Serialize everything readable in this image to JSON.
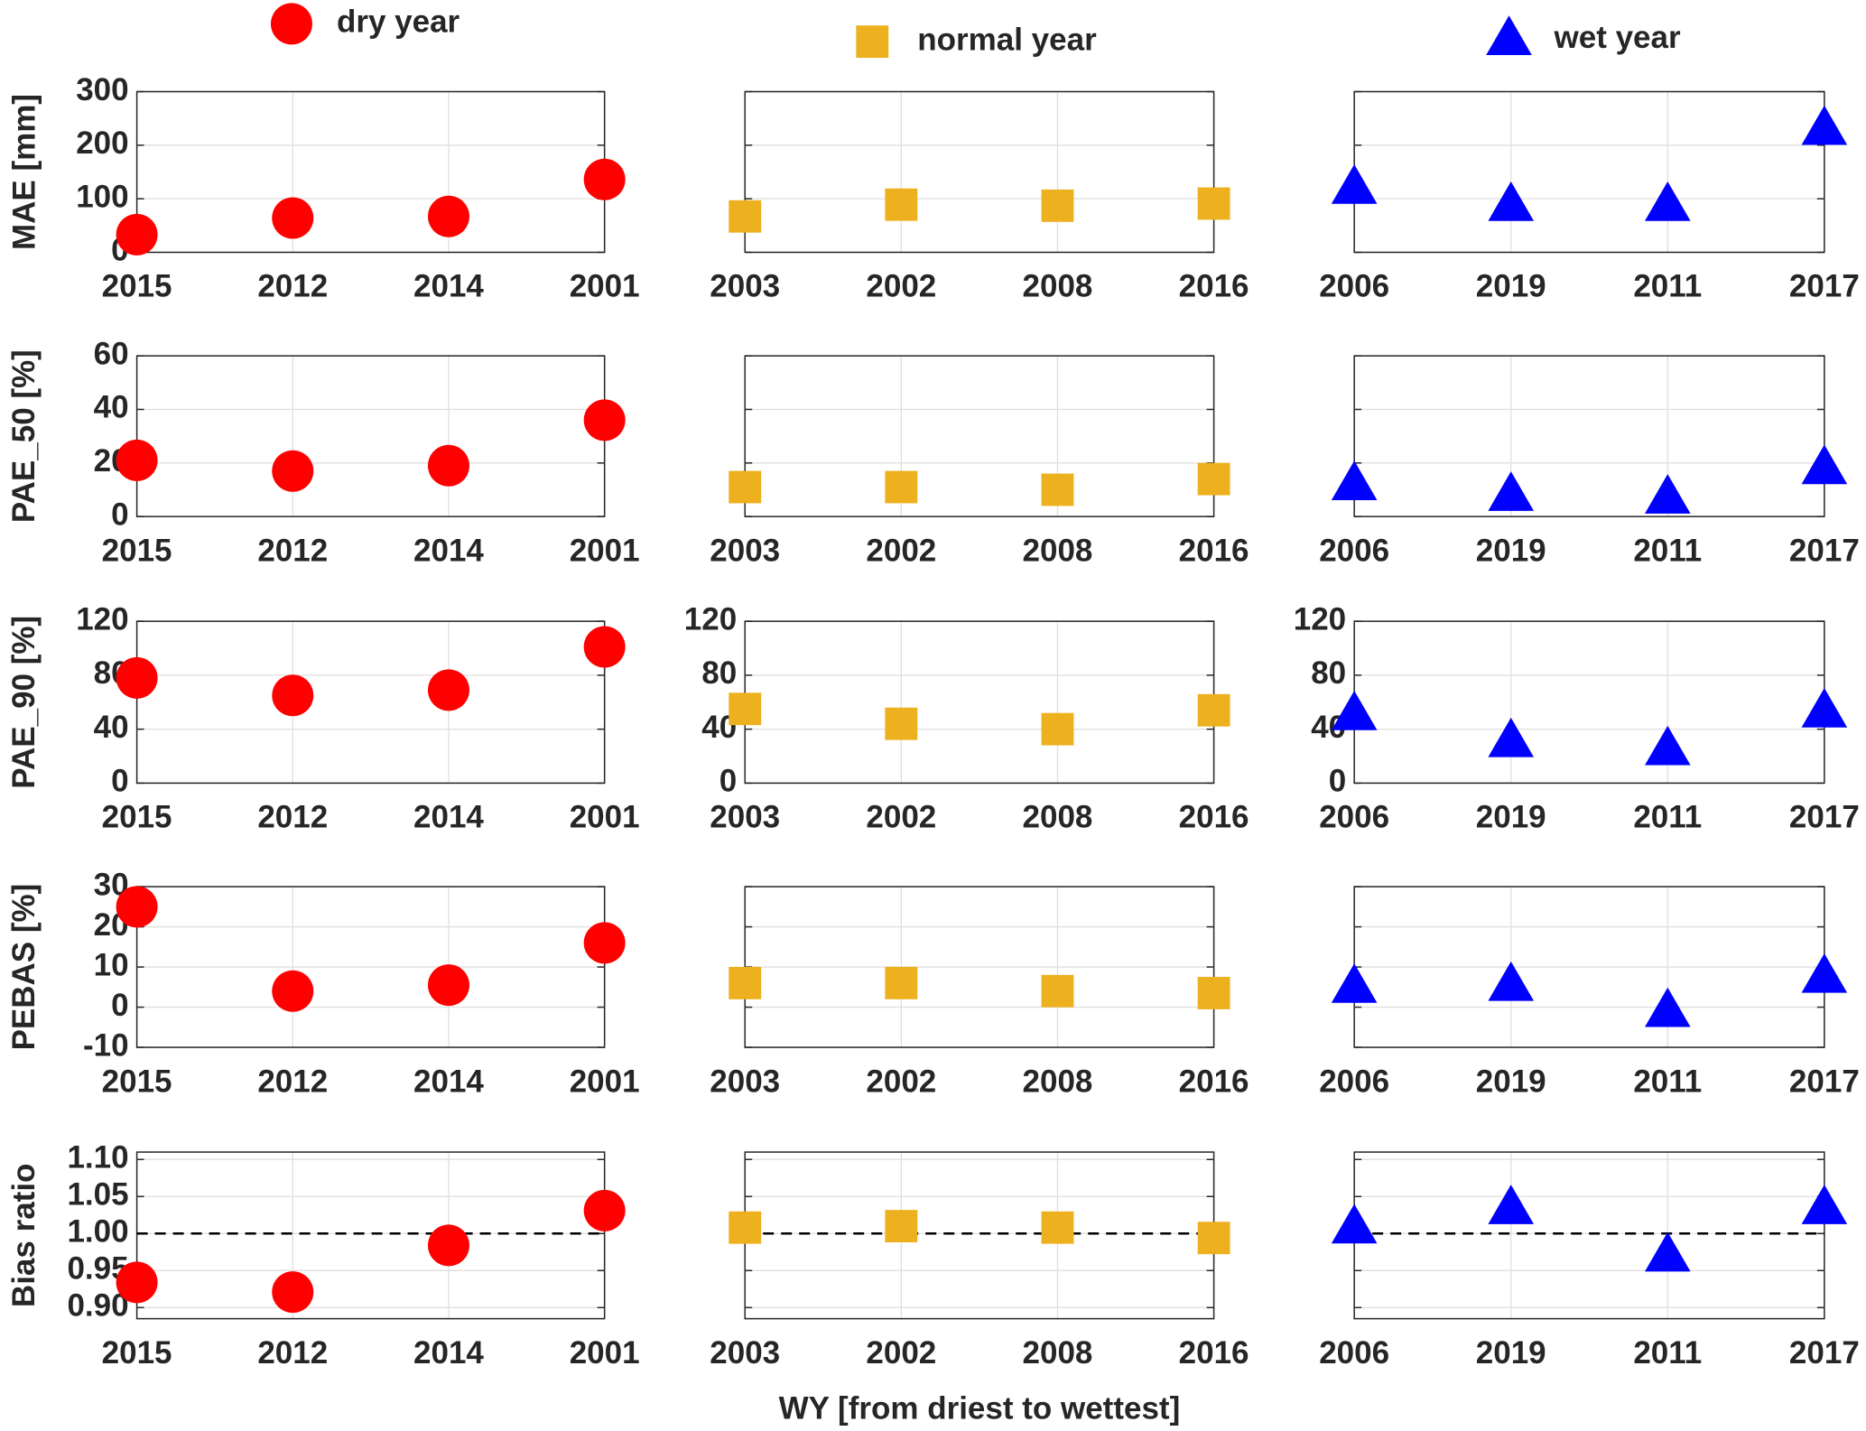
{
  "chart_data": [
    {
      "type": "scatter",
      "ylabel": "MAE [mm]",
      "categories": [
        "2015",
        "2012",
        "2014",
        "2001"
      ],
      "series": [
        {
          "name": "dry year",
          "color": "#ff0000",
          "marker": "circle",
          "values": [
            33,
            64,
            67,
            136
          ]
        }
      ],
      "ylim": [
        0,
        300
      ],
      "yticks": [
        0,
        100,
        200,
        300
      ],
      "grid": true
    },
    {
      "type": "scatter",
      "categories": [
        "2003",
        "2002",
        "2008",
        "2016"
      ],
      "series": [
        {
          "name": "normal year",
          "color": "#edb120",
          "marker": "square",
          "values": [
            67,
            89,
            87,
            91
          ]
        }
      ],
      "ylim": [
        0,
        300
      ],
      "yticks": [
        0,
        100,
        200,
        300
      ],
      "ytick_labels": false,
      "grid": true
    },
    {
      "type": "scatter",
      "categories": [
        "2006",
        "2019",
        "2011",
        "2017"
      ],
      "series": [
        {
          "name": "wet year",
          "color": "#0000ff",
          "marker": "triangle",
          "values": [
            120,
            88,
            88,
            230
          ]
        }
      ],
      "ylim": [
        0,
        300
      ],
      "yticks": [
        0,
        100,
        200,
        300
      ],
      "ytick_labels": false,
      "grid": true
    },
    {
      "type": "scatter",
      "ylabel": "PAE_50 [%]",
      "categories": [
        "2015",
        "2012",
        "2014",
        "2001"
      ],
      "series": [
        {
          "color": "#ff0000",
          "marker": "circle",
          "values": [
            21,
            17,
            19,
            36
          ]
        }
      ],
      "ylim": [
        0,
        60
      ],
      "yticks": [
        0,
        20,
        40,
        60
      ],
      "grid": true
    },
    {
      "type": "scatter",
      "categories": [
        "2003",
        "2002",
        "2008",
        "2016"
      ],
      "series": [
        {
          "color": "#edb120",
          "marker": "square",
          "values": [
            11,
            11,
            10,
            14
          ]
        }
      ],
      "ylim": [
        0,
        60
      ],
      "yticks": [
        0,
        20,
        40,
        60
      ],
      "ytick_labels": false,
      "grid": true
    },
    {
      "type": "scatter",
      "categories": [
        "2006",
        "2019",
        "2011",
        "2017"
      ],
      "series": [
        {
          "color": "#0000ff",
          "marker": "triangle",
          "values": [
            12,
            8,
            7,
            18
          ]
        }
      ],
      "ylim": [
        0,
        60
      ],
      "yticks": [
        0,
        20,
        40,
        60
      ],
      "ytick_labels": false,
      "grid": true
    },
    {
      "type": "scatter",
      "ylabel": "PAE_90 [%]",
      "categories": [
        "2015",
        "2012",
        "2014",
        "2001"
      ],
      "series": [
        {
          "color": "#ff0000",
          "marker": "circle",
          "values": [
            78,
            65,
            69,
            101
          ]
        }
      ],
      "ylim": [
        0,
        120
      ],
      "yticks": [
        0,
        40,
        80,
        120
      ],
      "grid": true
    },
    {
      "type": "scatter",
      "categories": [
        "2003",
        "2002",
        "2008",
        "2016"
      ],
      "series": [
        {
          "color": "#edb120",
          "marker": "square",
          "values": [
            55,
            44,
            40,
            54
          ]
        }
      ],
      "ylim": [
        0,
        120
      ],
      "yticks": [
        0,
        40,
        80,
        120
      ],
      "grid": true
    },
    {
      "type": "scatter",
      "categories": [
        "2006",
        "2019",
        "2011",
        "2017"
      ],
      "series": [
        {
          "color": "#0000ff",
          "marker": "triangle",
          "values": [
            51,
            31,
            25,
            53
          ]
        }
      ],
      "ylim": [
        0,
        120
      ],
      "yticks": [
        0,
        40,
        80,
        120
      ],
      "grid": true
    },
    {
      "type": "scatter",
      "ylabel": "PEBAS [%]",
      "categories": [
        "2015",
        "2012",
        "2014",
        "2001"
      ],
      "series": [
        {
          "color": "#ff0000",
          "marker": "circle",
          "values": [
            25,
            4,
            5.5,
            16
          ]
        }
      ],
      "ylim": [
        -10,
        30
      ],
      "yticks": [
        -10,
        0,
        10,
        20,
        30
      ],
      "grid": true
    },
    {
      "type": "scatter",
      "categories": [
        "2003",
        "2002",
        "2008",
        "2016"
      ],
      "series": [
        {
          "color": "#edb120",
          "marker": "square",
          "values": [
            6,
            6,
            4,
            3.5
          ]
        }
      ],
      "ylim": [
        -10,
        30
      ],
      "yticks": [
        -10,
        0,
        10,
        20,
        30
      ],
      "ytick_labels": false,
      "grid": true
    },
    {
      "type": "scatter",
      "categories": [
        "2006",
        "2019",
        "2011",
        "2017"
      ],
      "series": [
        {
          "color": "#0000ff",
          "marker": "triangle",
          "values": [
            5,
            5.5,
            -1,
            7.5
          ]
        }
      ],
      "ylim": [
        -10,
        30
      ],
      "yticks": [
        -10,
        0,
        10,
        20,
        30
      ],
      "ytick_labels": false,
      "grid": true
    },
    {
      "type": "scatter",
      "ylabel": "Bias ratio",
      "categories": [
        "2015",
        "2012",
        "2014",
        "2001"
      ],
      "series": [
        {
          "color": "#ff0000",
          "marker": "circle",
          "values": [
            0.934,
            0.921,
            0.984,
            1.031
          ]
        }
      ],
      "ylim": [
        0.885,
        1.11
      ],
      "yticks": [
        {
          "value": 0.9,
          "label": "0.90"
        },
        {
          "value": 0.95,
          "label": "0.95"
        },
        {
          "value": 1,
          "label": "1.00"
        },
        {
          "value": 1.05,
          "label": "1.05"
        },
        {
          "value": 1.1,
          "label": "1.10"
        }
      ],
      "hline": 1,
      "grid": true
    },
    {
      "type": "scatter",
      "xlabel": "WY [from driest to wettest]",
      "categories": [
        "2003",
        "2002",
        "2008",
        "2016"
      ],
      "series": [
        {
          "color": "#edb120",
          "marker": "square",
          "values": [
            1.008,
            1.01,
            1.008,
            0.994
          ]
        }
      ],
      "ylim": [
        0.885,
        1.11
      ],
      "yticks": [
        0.9,
        0.95,
        1,
        1.05,
        1.1
      ],
      "ytick_labels": false,
      "hline": 1,
      "grid": true
    },
    {
      "type": "scatter",
      "categories": [
        "2006",
        "2019",
        "2011",
        "2017"
      ],
      "series": [
        {
          "color": "#0000ff",
          "marker": "triangle",
          "values": [
            1.008,
            1.034,
            0.97,
            1.034
          ]
        }
      ],
      "ylim": [
        0.885,
        1.11
      ],
      "yticks": [
        0.9,
        0.95,
        1,
        1.05,
        1.1
      ],
      "ytick_labels": false,
      "hline": 1,
      "grid": true
    }
  ]
}
